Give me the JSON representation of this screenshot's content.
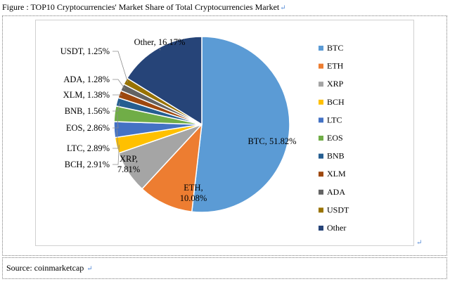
{
  "figure_title": "Figure : TOP10 Cryptocurrencies' Market Share of Total Cryptocurrencies Market",
  "paragraph_mark": "↵",
  "source_label": "Source: coinmarketcap",
  "chart_data": {
    "type": "pie",
    "title": "",
    "categories": [
      "BTC",
      "ETH",
      "XRP",
      "BCH",
      "LTC",
      "EOS",
      "BNB",
      "XLM",
      "ADA",
      "USDT",
      "Other"
    ],
    "values": [
      51.82,
      10.08,
      7.81,
      2.91,
      2.89,
      2.86,
      1.56,
      1.38,
      1.28,
      1.25,
      16.17
    ],
    "data_labels": [
      "BTC, 51.82%",
      "ETH, 10.08%",
      "XRP, 7.81%",
      "BCH, 2.91%",
      "LTC, 2.89%",
      "EOS, 2.86%",
      "BNB, 1.56%",
      "XLM, 1.38%",
      "ADA, 1.28%",
      "USDT, 1.25%",
      "Other, 16.17%"
    ],
    "colors": [
      "#5b9bd5",
      "#ed7d31",
      "#a5a5a5",
      "#ffc000",
      "#4472c4",
      "#70ad47",
      "#255e91",
      "#9e480e",
      "#636363",
      "#997300",
      "#264478"
    ],
    "legend": [
      "BTC",
      "ETH",
      "XRP",
      "BCH",
      "LTC",
      "EOS",
      "BNB",
      "XLM",
      "ADA",
      "USDT",
      "Other"
    ],
    "legend_position": "right",
    "start_angle_deg": 0,
    "direction": "clockwise"
  }
}
